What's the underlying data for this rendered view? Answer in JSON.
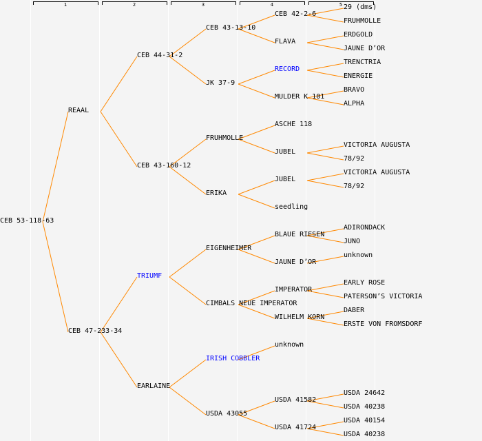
{
  "generations": [
    "1",
    "2",
    "3",
    "4",
    "5"
  ],
  "colors": {
    "line": "#ff8800",
    "text": "#000000",
    "link": "#0000ff",
    "background": "#f4f4f4"
  },
  "tree": {
    "name": "CEB 53-118-63",
    "children": [
      {
        "name": "REAAL",
        "children": [
          {
            "name": "CEB 44-31-2",
            "children": [
              {
                "name": "CEB 43-13-10",
                "children": [
                  {
                    "name": "CEB 42-2-6",
                    "children": [
                      {
                        "name": "29 (dms)"
                      },
                      {
                        "name": "FRUHMOLLE"
                      }
                    ]
                  },
                  {
                    "name": "FLAVA",
                    "children": [
                      {
                        "name": "ERDGOLD"
                      },
                      {
                        "name": "JAUNE D’OR"
                      }
                    ]
                  }
                ]
              },
              {
                "name": "JK 37-9",
                "children": [
                  {
                    "name": "RECORD",
                    "link": true,
                    "children": [
                      {
                        "name": "TRENCTRIA"
                      },
                      {
                        "name": "ENERGIE"
                      }
                    ]
                  },
                  {
                    "name": "MULDER K 101",
                    "children": [
                      {
                        "name": "BRAVO"
                      },
                      {
                        "name": "ALPHA"
                      }
                    ]
                  }
                ]
              }
            ]
          },
          {
            "name": "CEB 43-160-12",
            "children": [
              {
                "name": "FRUHMOLLE",
                "children": [
                  {
                    "name": "ASCHE 118"
                  },
                  {
                    "name": "JUBEL",
                    "children": [
                      {
                        "name": "VICTORIA AUGUSTA"
                      },
                      {
                        "name": "78/92"
                      }
                    ]
                  }
                ]
              },
              {
                "name": "ERIKA",
                "children": [
                  {
                    "name": "JUBEL",
                    "children": [
                      {
                        "name": "VICTORIA AUGUSTA"
                      },
                      {
                        "name": "78/92"
                      }
                    ]
                  },
                  {
                    "name": "seedling"
                  }
                ]
              }
            ]
          }
        ]
      },
      {
        "name": "CEB 47-233-34",
        "children": [
          {
            "name": "TRIUMF",
            "link": true,
            "children": [
              {
                "name": "EIGENHEIMER",
                "children": [
                  {
                    "name": "BLAUE RIESEN",
                    "children": [
                      {
                        "name": "ADIRONDACK"
                      },
                      {
                        "name": "JUNO"
                      }
                    ]
                  },
                  {
                    "name": "JAUNE D’OR",
                    "children": [
                      {
                        "name": "unknown"
                      }
                    ]
                  }
                ]
              },
              {
                "name": "CIMBALS NEUE IMPERATOR",
                "children": [
                  {
                    "name": "IMPERATOR",
                    "children": [
                      {
                        "name": "EARLY ROSE"
                      },
                      {
                        "name": "PATERSON’S VICTORIA"
                      }
                    ]
                  },
                  {
                    "name": "WILHELM KORN",
                    "children": [
                      {
                        "name": "DABER"
                      },
                      {
                        "name": "ERSTE VON FROMSDORF"
                      }
                    ]
                  }
                ]
              }
            ]
          },
          {
            "name": "EARLAINE",
            "children": [
              {
                "name": "IRISH COBBLER",
                "link": true,
                "children": [
                  {
                    "name": "unknown"
                  }
                ]
              },
              {
                "name": "USDA 43055",
                "children": [
                  {
                    "name": "USDA 41582",
                    "children": [
                      {
                        "name": "USDA 24642"
                      },
                      {
                        "name": "USDA 40238"
                      }
                    ]
                  },
                  {
                    "name": "USDA 41724",
                    "children": [
                      {
                        "name": "USDA 40154"
                      },
                      {
                        "name": "USDA 40238"
                      }
                    ]
                  }
                ]
              }
            ]
          }
        ]
      }
    ]
  }
}
